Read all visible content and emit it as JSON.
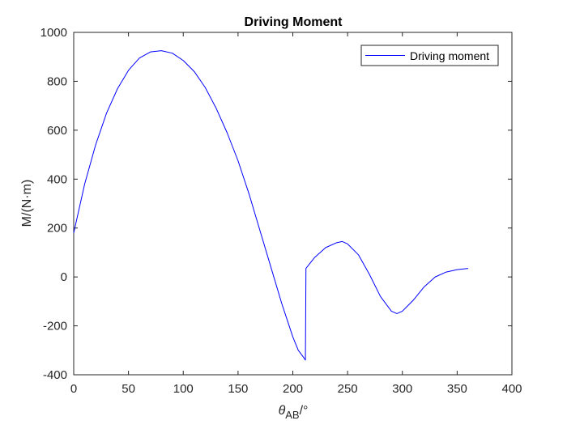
{
  "chart_data": {
    "type": "line",
    "title": "Driving Moment",
    "xlabel": {
      "symbol": "θ",
      "subscript": "AB",
      "unit": "/°"
    },
    "ylabel": "M/(N·m)",
    "xlim": [
      0,
      400
    ],
    "ylim": [
      -400,
      1000
    ],
    "xticks": [
      0,
      50,
      100,
      150,
      200,
      250,
      300,
      350,
      400
    ],
    "yticks": [
      -400,
      -200,
      0,
      200,
      400,
      600,
      800,
      1000
    ],
    "grid": false,
    "legend_position": "top-right",
    "series": [
      {
        "name": "Driving moment",
        "color": "#0000ff",
        "x": [
          0,
          10,
          20,
          30,
          40,
          50,
          60,
          70,
          80,
          90,
          100,
          110,
          120,
          130,
          140,
          150,
          160,
          170,
          180,
          190,
          200,
          205,
          210,
          211.5,
          212,
          220,
          230,
          240,
          245,
          250,
          260,
          270,
          280,
          290,
          295,
          300,
          310,
          320,
          330,
          340,
          350,
          360
        ],
        "y": [
          180,
          380,
          540,
          670,
          770,
          845,
          895,
          920,
          925,
          915,
          885,
          840,
          775,
          690,
          590,
          475,
          340,
          190,
          40,
          -110,
          -245,
          -300,
          -330,
          -340,
          35,
          80,
          120,
          140,
          145,
          135,
          90,
          10,
          -80,
          -140,
          -150,
          -140,
          -95,
          -40,
          0,
          20,
          30,
          35
        ]
      }
    ]
  }
}
